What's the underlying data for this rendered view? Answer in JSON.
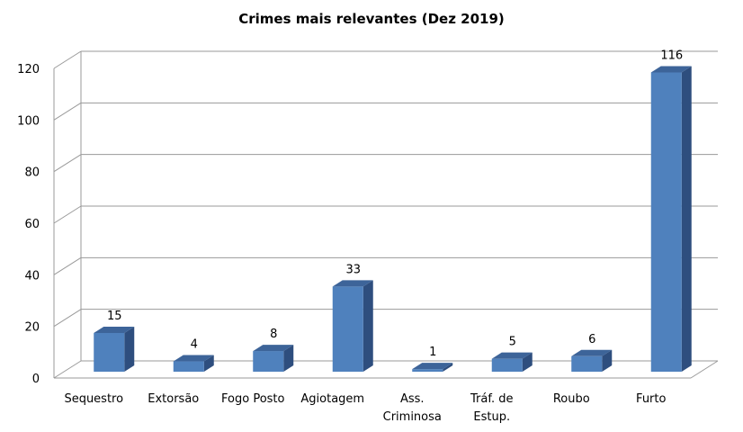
{
  "chart_data": {
    "type": "bar",
    "title": "Crimes mais relevantes (Dez 2019)",
    "categories": [
      [
        "Sequestro"
      ],
      [
        "Extorsão"
      ],
      [
        "Fogo Posto"
      ],
      [
        "Agiotagem"
      ],
      [
        "Ass.",
        "Criminosa"
      ],
      [
        "Tráf. de",
        "Estup."
      ],
      [
        "Roubo"
      ],
      [
        "Furto"
      ]
    ],
    "values": [
      15,
      4,
      8,
      33,
      1,
      5,
      6,
      116
    ],
    "data_labels": [
      "15",
      "4",
      "8",
      "33",
      "1",
      "5",
      "6",
      "116"
    ],
    "ylim": [
      0,
      120
    ],
    "yticks": [
      0,
      20,
      40,
      60,
      80,
      100,
      120
    ],
    "grid": true,
    "style": "3d-column",
    "colors": {
      "bar_front": "#4F81BD",
      "bar_side": "#2E4E7E",
      "bar_top": "#3D6499",
      "grid": "#9A9A9A"
    }
  }
}
